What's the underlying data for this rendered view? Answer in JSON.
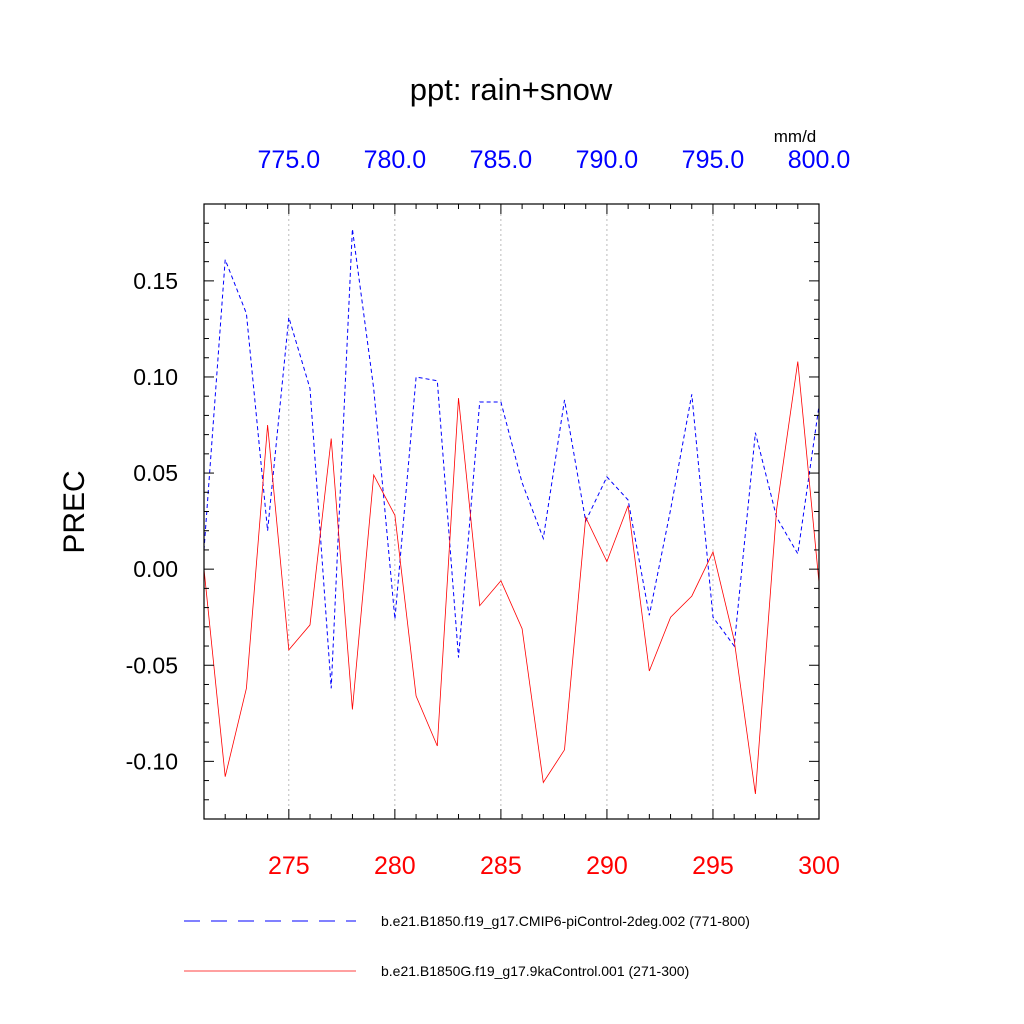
{
  "chart_data": {
    "type": "line",
    "title": "ppt: rain+snow",
    "ylabel": "PREC",
    "top_axis_units": "mm/d",
    "ylim": [
      -0.13,
      0.19
    ],
    "yticks": [
      "0.15",
      "0.10",
      "0.05",
      "0.00",
      "-0.05",
      "-0.10"
    ],
    "ytick_values": [
      0.15,
      0.1,
      0.05,
      0.0,
      -0.05,
      -0.1
    ],
    "bottom_axis": {
      "xlim": [
        271,
        300
      ],
      "ticks": [
        275,
        280,
        285,
        290,
        295,
        300
      ],
      "tick_labels": [
        "275",
        "280",
        "285",
        "290",
        "295",
        "300"
      ],
      "color": "#ff0000"
    },
    "top_axis": {
      "xlim": [
        771,
        800
      ],
      "ticks": [
        775,
        780,
        785,
        790,
        795,
        800
      ],
      "tick_labels": [
        "775.0",
        "780.0",
        "785.0",
        "790.0",
        "795.0",
        "800.0"
      ],
      "color": "#0000ff"
    },
    "grid": "vertical dotted at major bottom ticks",
    "legend_placement": "bottom",
    "series": [
      {
        "name": "b.e21.B1850.f19_g17.CMIP6-piControl-2deg.002 (771-800)",
        "axis": "top",
        "color": "#0000ff",
        "style": "dashed",
        "x": [
          771,
          772,
          773,
          774,
          775,
          776,
          777,
          778,
          779,
          780,
          781,
          782,
          783,
          784,
          785,
          786,
          787,
          788,
          789,
          790,
          791,
          792,
          793,
          794,
          795,
          796,
          797,
          798,
          799,
          800
        ],
        "values": [
          0.01,
          0.161,
          0.133,
          0.02,
          0.131,
          0.094,
          -0.062,
          0.177,
          0.094,
          -0.026,
          0.1,
          0.098,
          -0.046,
          0.087,
          0.087,
          0.045,
          0.016,
          0.088,
          0.025,
          0.048,
          0.036,
          -0.024,
          0.031,
          0.091,
          -0.025,
          -0.04,
          0.071,
          0.027,
          0.008,
          0.085
        ]
      },
      {
        "name": "b.e21.B1850G.f19_g17.9kaControl.001 (271-300)",
        "axis": "bottom",
        "color": "#ff0000",
        "style": "solid",
        "x": [
          271,
          272,
          273,
          274,
          275,
          276,
          277,
          278,
          279,
          280,
          281,
          282,
          283,
          284,
          285,
          286,
          287,
          288,
          289,
          290,
          291,
          292,
          293,
          294,
          295,
          296,
          297,
          298,
          299,
          300
        ],
        "values": [
          0.0,
          -0.108,
          -0.062,
          0.075,
          -0.042,
          -0.029,
          0.068,
          -0.073,
          0.049,
          0.028,
          -0.066,
          -0.092,
          0.089,
          -0.019,
          -0.006,
          -0.031,
          -0.111,
          -0.094,
          0.027,
          0.004,
          0.033,
          -0.053,
          -0.025,
          -0.014,
          0.009,
          -0.037,
          -0.117,
          0.031,
          0.108,
          -0.007
        ]
      }
    ]
  }
}
